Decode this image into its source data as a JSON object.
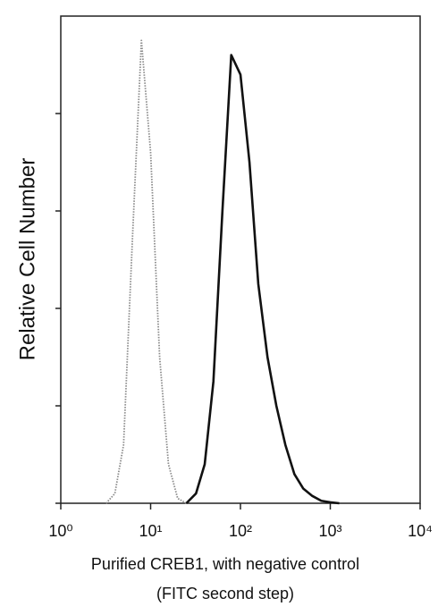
{
  "chart_data": {
    "type": "line",
    "ylabel": "Relative Cell Number",
    "xlabel": [
      "Purified CREB1, with negative control",
      "(FITC second step)"
    ],
    "log_x": true,
    "xlim": [
      1,
      10000
    ],
    "xticks": [
      {
        "value": 1,
        "label": "10⁰"
      },
      {
        "value": 10,
        "label": "10¹"
      },
      {
        "value": 100,
        "label": "10²"
      },
      {
        "value": 1000,
        "label": "10³"
      },
      {
        "value": 10000,
        "label": "10⁴"
      }
    ],
    "ylim": [
      0,
      100
    ],
    "yticks": [
      0,
      20,
      40,
      60,
      80
    ],
    "x": [
      3.2,
      4,
      5,
      6.3,
      7.9,
      10,
      12.6,
      15.8,
      20,
      25,
      32,
      40,
      50,
      63,
      79,
      100,
      126,
      158,
      200,
      251,
      316,
      398,
      501,
      631,
      794,
      1000,
      1259
    ],
    "series": [
      {
        "color": "#8a8a8a",
        "dashed": true,
        "values": [
          0,
          2,
          12,
          55,
          95,
          72,
          30,
          8,
          1,
          0,
          null,
          null,
          null,
          null,
          null,
          null,
          null,
          null,
          null,
          null,
          null,
          null,
          null,
          null,
          null,
          null,
          null
        ]
      },
      {
        "color": "#111111",
        "dashed": false,
        "values": [
          null,
          null,
          null,
          null,
          null,
          null,
          null,
          null,
          null,
          0,
          2,
          8,
          25,
          60,
          92,
          88,
          70,
          45,
          30,
          20,
          12,
          6,
          3,
          1.5,
          0.5,
          0.2,
          0
        ]
      }
    ]
  }
}
